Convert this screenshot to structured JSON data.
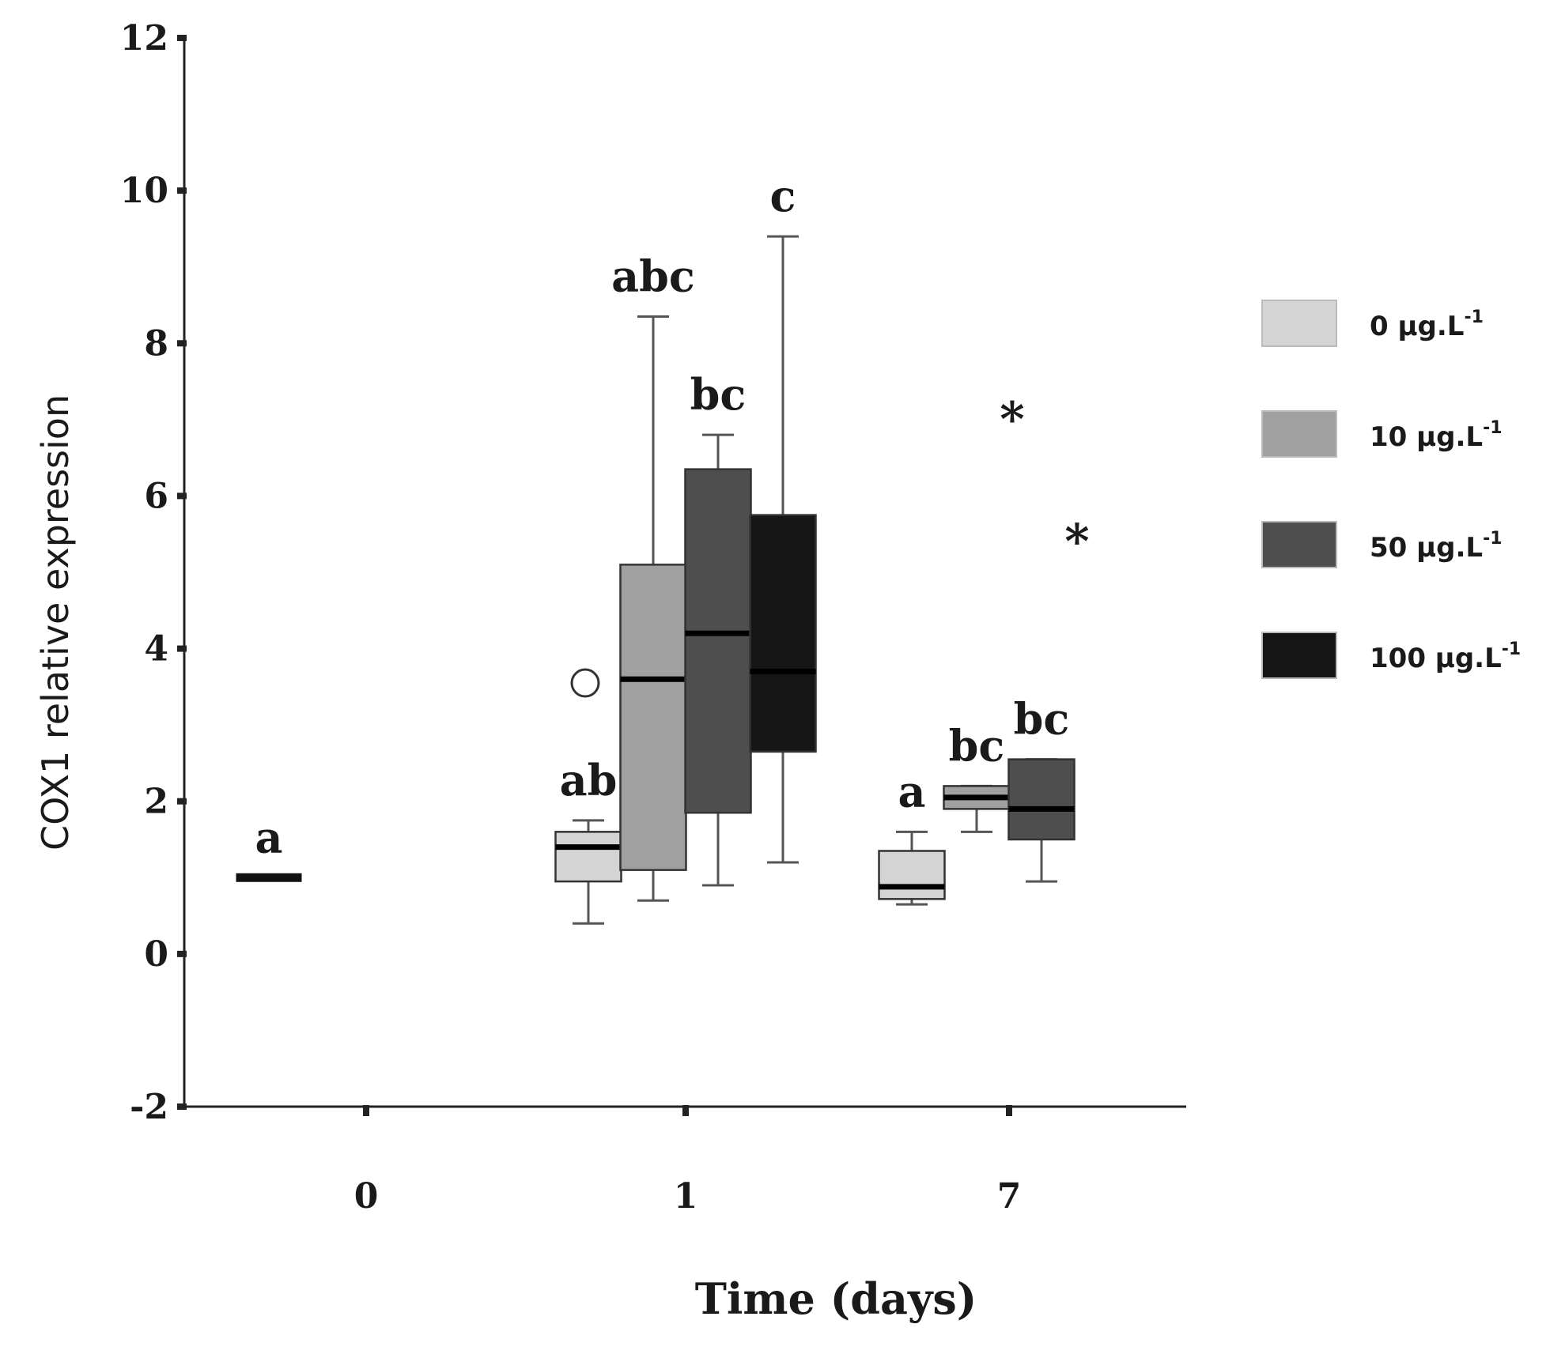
{
  "chart_data": {
    "type": "box",
    "ylabel": "COX1 relative expression",
    "xlabel": "Time (days)",
    "ylim": [
      -2,
      12
    ],
    "yticks": [
      -2,
      0,
      2,
      4,
      6,
      8,
      10,
      12
    ],
    "categories": [
      "0",
      "1",
      "7"
    ],
    "legend_position": "right",
    "series": [
      {
        "name": "0 µg.L",
        "sup": "-1",
        "color": "#d4d4d4"
      },
      {
        "name": "10 µg.L",
        "sup": "-1",
        "color": "#a0a0a0"
      },
      {
        "name": "50 µg.L",
        "sup": "-1",
        "color": "#4e4e4e"
      },
      {
        "name": "100 µg.L",
        "sup": "-1",
        "color": "#161616"
      }
    ],
    "boxes": [
      {
        "category": "0",
        "offset": -1.5,
        "line_only": true,
        "median": 1.0,
        "series": 0,
        "letter": "a"
      },
      {
        "category": "1",
        "offset": -1.5,
        "series": 0,
        "min": 0.4,
        "q1": 0.95,
        "median": 1.4,
        "q3": 1.6,
        "max": 1.75,
        "letter": "ab",
        "outlier_circle": 3.55
      },
      {
        "category": "1",
        "offset": -0.5,
        "series": 1,
        "min": 0.7,
        "q1": 1.1,
        "median": 3.6,
        "q3": 5.1,
        "max": 8.35,
        "letter": "abc"
      },
      {
        "category": "1",
        "offset": 0.5,
        "series": 2,
        "min": 0.9,
        "q1": 1.85,
        "median": 4.2,
        "q3": 6.35,
        "max": 6.8,
        "letter": "bc"
      },
      {
        "category": "1",
        "offset": 1.5,
        "series": 3,
        "min": 1.2,
        "q1": 2.65,
        "median": 3.7,
        "q3": 5.75,
        "max": 9.4,
        "letter": "c"
      },
      {
        "category": "7",
        "offset": -1.5,
        "series": 0,
        "min": 0.65,
        "q1": 0.72,
        "median": 0.88,
        "q3": 1.35,
        "max": 1.6,
        "letter": "a"
      },
      {
        "category": "7",
        "offset": -0.5,
        "series": 1,
        "min": 1.6,
        "q1": 1.9,
        "median": 2.05,
        "q3": 2.2,
        "max": 2.2,
        "letter": "bc",
        "outlier_star": 7.1
      },
      {
        "category": "7",
        "offset": 0.5,
        "series": 2,
        "min": 0.95,
        "q1": 1.5,
        "median": 1.9,
        "q3": 2.55,
        "max": 2.55,
        "letter": "bc",
        "outlier_star": 5.5
      }
    ]
  }
}
